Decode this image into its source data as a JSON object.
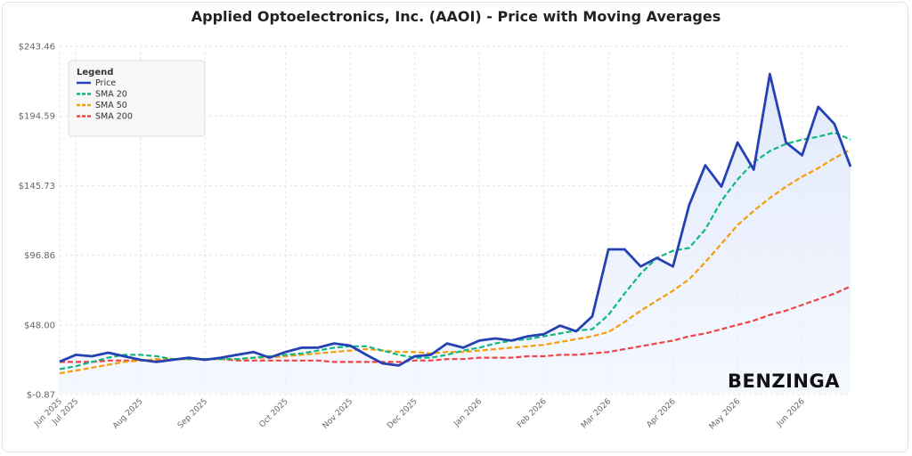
{
  "chart_data": {
    "type": "line",
    "title": "Applied Optoelectronics, Inc. (AAOI) - Price with Moving Averages",
    "watermark": "BENZINGA",
    "legend_title": "Legend",
    "legend_position": "upper left",
    "grid": true,
    "area_under": "Price",
    "categories": [
      "Jun 2025",
      "Jul 2025",
      null,
      null,
      null,
      "Aug 2025",
      null,
      null,
      null,
      "Sep 2025",
      null,
      null,
      null,
      null,
      "Oct 2025",
      null,
      null,
      null,
      "Nov 2025",
      null,
      null,
      null,
      "Dec 2025",
      null,
      null,
      null,
      "Jan 2026",
      null,
      null,
      null,
      "Feb 2026",
      null,
      null,
      null,
      "Mar 2026",
      null,
      null,
      null,
      "Apr 2026",
      null,
      null,
      null,
      "May 2026",
      null,
      null,
      null,
      "Jun 2026",
      null,
      null,
      null
    ],
    "ylim": [
      -0.87,
      243.46
    ],
    "yticks": [
      {
        "value": -0.87,
        "label": "$-0.87"
      },
      {
        "value": 48.0,
        "label": "$48.00"
      },
      {
        "value": 96.86,
        "label": "$96.86"
      },
      {
        "value": 145.73,
        "label": "$145.73"
      },
      {
        "value": 194.59,
        "label": "$194.59"
      },
      {
        "value": 243.46,
        "label": "$243.46"
      }
    ],
    "series": [
      {
        "name": "Price",
        "color": "#2541b2",
        "style": "solid",
        "values": [
          22.2,
          27,
          26,
          28.5,
          26,
          23.5,
          22,
          23.5,
          25,
          23.5,
          25,
          27,
          29,
          25,
          29,
          32,
          32,
          35,
          33.5,
          27,
          21,
          19.5,
          26,
          27,
          35,
          32,
          37,
          38.5,
          37,
          40,
          41.5,
          47.5,
          43.5,
          54,
          101,
          101,
          89,
          95,
          89,
          132,
          160,
          145,
          176,
          157,
          224,
          176,
          167,
          201,
          189,
          159
        ]
      },
      {
        "name": "SMA 20",
        "color": "#10b981",
        "style": "dashed",
        "values": [
          17,
          19,
          22,
          25,
          27,
          27,
          26,
          24,
          24,
          24,
          24,
          24,
          25,
          26,
          27,
          28,
          30,
          32,
          33,
          33,
          30,
          27,
          25,
          25,
          27,
          30,
          32,
          35,
          37,
          38,
          40,
          42,
          44,
          45,
          55,
          70,
          84,
          95,
          100,
          102,
          115,
          135,
          150,
          162,
          170,
          175,
          178,
          180,
          183,
          178
        ]
      },
      {
        "name": "SMA 50",
        "color": "#f59e0b",
        "style": "dashed",
        "values": [
          14,
          16,
          18,
          20,
          22,
          23,
          24,
          24,
          24,
          24,
          24,
          24,
          25,
          25,
          26,
          27,
          28,
          29,
          30,
          31,
          30,
          29,
          29,
          28,
          29,
          29,
          30,
          31,
          32,
          33,
          34,
          36,
          38,
          40,
          43,
          50,
          58,
          65,
          72,
          80,
          92,
          105,
          118,
          128,
          137,
          145,
          152,
          158,
          165,
          171
        ]
      },
      {
        "name": "SMA 200",
        "color": "#ef4444",
        "style": "dashed",
        "values": [
          22,
          22,
          22,
          23,
          23,
          23,
          23,
          24,
          24,
          24,
          24,
          23,
          23,
          23,
          23,
          23,
          23,
          22,
          22,
          22,
          22,
          22,
          23,
          23,
          24,
          24,
          25,
          25,
          25,
          26,
          26,
          27,
          27,
          28,
          29,
          31,
          33,
          35,
          37,
          40,
          42,
          45,
          48,
          51,
          55,
          58,
          62,
          66,
          70,
          75
        ]
      }
    ]
  }
}
